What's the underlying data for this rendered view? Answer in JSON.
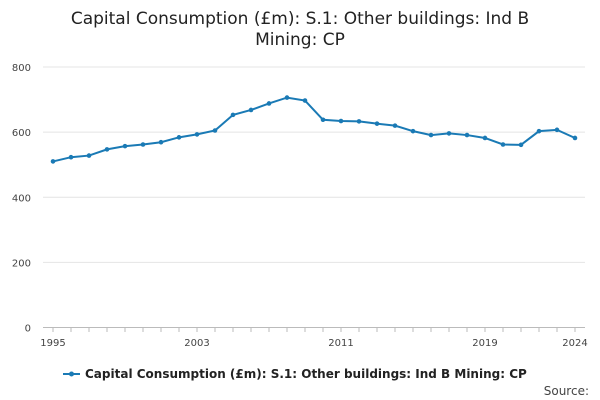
{
  "chart_data": {
    "type": "line",
    "title_line1": "Capital Consumption (£m): S.1: Other buildings: Ind B",
    "title_line2": "Mining: CP",
    "x": [
      1995,
      1996,
      1997,
      1998,
      1999,
      2000,
      2001,
      2002,
      2003,
      2004,
      2005,
      2006,
      2007,
      2008,
      2009,
      2010,
      2011,
      2012,
      2013,
      2014,
      2015,
      2016,
      2017,
      2018,
      2019,
      2020,
      2021,
      2022,
      2023,
      2024
    ],
    "series": [
      {
        "name": "Capital Consumption (£m): S.1: Other buildings: Ind B Mining: CP",
        "color": "#1a7ab5",
        "values": [
          510,
          523,
          528,
          547,
          557,
          562,
          569,
          584,
          593,
          605,
          653,
          668,
          688,
          706,
          697,
          638,
          634,
          633,
          626,
          620,
          603,
          591,
          596,
          591,
          582,
          562,
          561,
          603,
          607,
          582
        ]
      }
    ],
    "x_ticks": [
      "1995",
      "2003",
      "2011",
      "2019",
      "2024"
    ],
    "y_ticks": [
      "0",
      "200",
      "400",
      "600",
      "800"
    ],
    "xlim": [
      1995,
      2024
    ],
    "ylim": [
      0,
      800
    ],
    "grid": true,
    "legend_position": "bottom",
    "source_label": "Source:"
  }
}
